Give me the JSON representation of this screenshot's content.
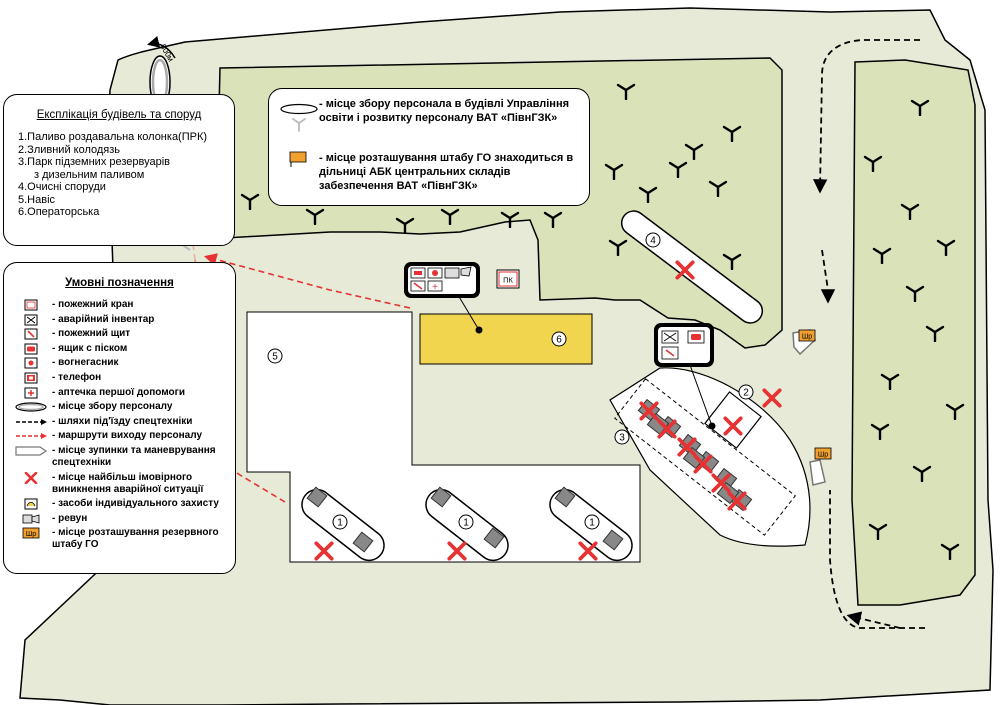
{
  "colors": {
    "territory": "#e6ead7",
    "forest": "#d9e2b9",
    "building_yellow": "#f1d54e",
    "danger_red": "#e63232",
    "assembly_gray": "#b0b0b0",
    "flag_orange": "#f0a030"
  },
  "explication": {
    "title": "Експлікація будівель та споруд",
    "items": [
      "1.Паливо роздавальна колонка(ПРК)",
      "2.Зливний колодязь",
      "3.Парк підземних резервуарів",
      "з дизельним паливом",
      "4.Очисні споруди",
      "5.Навіс",
      "6.Операторська"
    ]
  },
  "legend": {
    "title": "Умовні позначення",
    "items": [
      {
        "icon": "fire-hydrant-icon",
        "label": "- пожежний кран"
      },
      {
        "icon": "emergency-tools-icon",
        "label": "- аварійний інвентар"
      },
      {
        "icon": "fire-board-icon",
        "label": "- пожежний щит"
      },
      {
        "icon": "sand-box-icon",
        "label": "- ящик с піском"
      },
      {
        "icon": "extinguisher-icon",
        "label": "- вогнегасник"
      },
      {
        "icon": "phone-icon",
        "label": "- телефон"
      },
      {
        "icon": "first-aid-icon",
        "label": "- аптечка першої допомоги"
      },
      {
        "icon": "assembly-point-icon",
        "label": "- місце збору персоналу"
      },
      {
        "icon": "vehicle-route-icon",
        "label": "- шляхи під'їзду спецтехніки"
      },
      {
        "icon": "exit-route-icon",
        "label": "- маршрути виходу персоналу"
      },
      {
        "icon": "parking-area-icon",
        "label": "- місце зупинки та маневрування спецтехніки"
      },
      {
        "icon": "danger-cross-icon",
        "label": "- місце найбільш імовірного виникнення аварійної ситуації"
      },
      {
        "icon": "protection-means-icon",
        "label": "- засоби індивідуального захисту"
      },
      {
        "icon": "siren-icon",
        "label": "- ревун"
      },
      {
        "icon": "reserve-hq-flag-icon",
        "label": "- місце розташування резервного штабу ГО"
      }
    ]
  },
  "note": {
    "assembly": "- місце збору персонала в будівлі Управління освіти і розвитку персоналу ВАТ «ПівнГЗК»",
    "hq": "- місце розташування штабу ГО знаходиться в дільниці АБК центральних складів забезпечення ВАТ «ПівнГЗК»"
  },
  "map_labels": {
    "distance": "500м",
    "fire_hydrant_code": "ПК",
    "flag_code": "Шр",
    "building_numbers": [
      "1",
      "1",
      "1",
      "2",
      "3",
      "4",
      "5",
      "6"
    ]
  }
}
